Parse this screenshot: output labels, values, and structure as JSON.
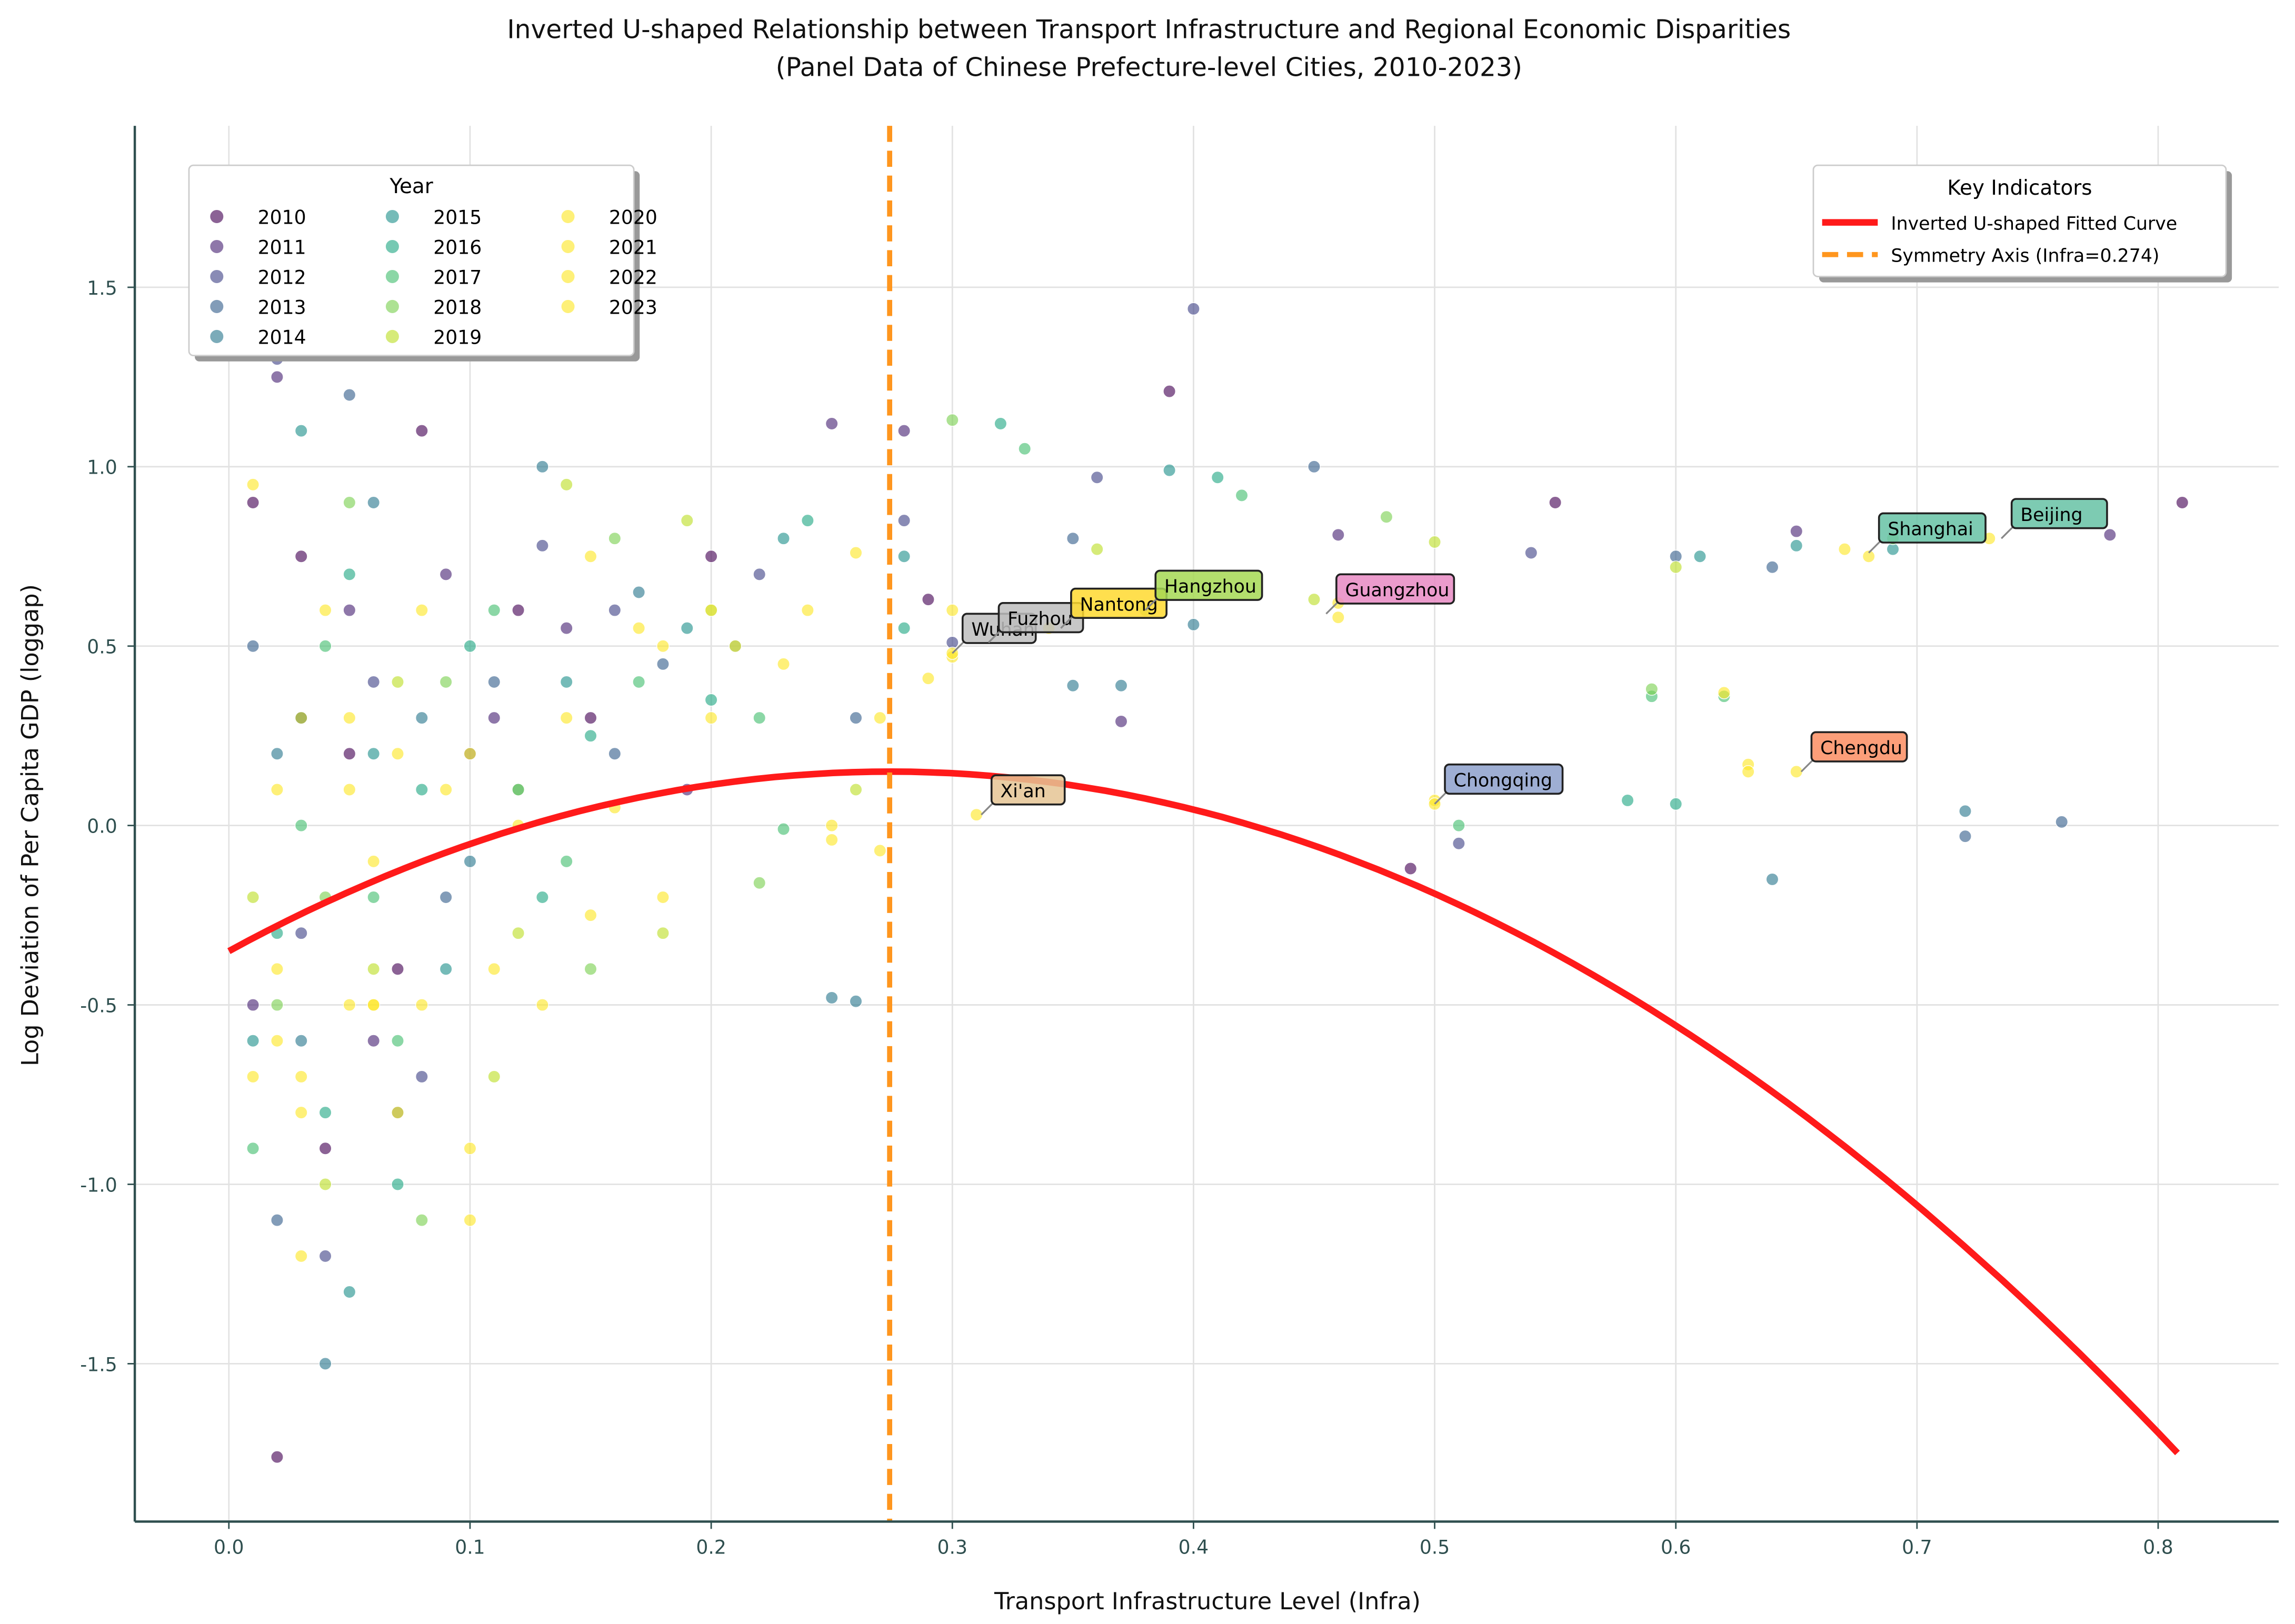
{
  "chart_data": {
    "type": "scatter",
    "title": "Inverted U-shaped Relationship between Transport Infrastructure and Regional Economic Disparities",
    "subtitle": "(Panel Data of Chinese Prefecture-level Cities, 2010-2023)",
    "xlabel": "Transport Infrastructure Level (Infra)",
    "ylabel": "Log Deviation of Per Capita GDP (loggap)",
    "xlim": [
      -0.039,
      0.85
    ],
    "ylim": [
      -1.94,
      1.95
    ],
    "xticks": [
      "0.0",
      "0.1",
      "0.2",
      "0.3",
      "0.4",
      "0.5",
      "0.6",
      "0.7",
      "0.8"
    ],
    "yticks": [
      "-1.5",
      "-1.0",
      "-0.5",
      "0.0",
      "0.5",
      "1.0",
      "1.5"
    ],
    "grid": true,
    "legend_title": "Year",
    "legend_position": "top-left",
    "years": [
      "2010",
      "2011",
      "2012",
      "2013",
      "2014",
      "2015",
      "2016",
      "2017",
      "2018",
      "2019",
      "2020",
      "2021",
      "2022",
      "2023"
    ],
    "year_colors": [
      "#440154",
      "#482475",
      "#414487",
      "#355f8d",
      "#2a788e",
      "#21918c",
      "#22a884",
      "#44bf70",
      "#7ad151",
      "#bddf26",
      "#fde725",
      "#fde725",
      "#fde725",
      "#fde725"
    ],
    "points": {
      "2010": [
        [
          0.01,
          0.9
        ],
        [
          0.02,
          -1.76
        ],
        [
          0.03,
          0.75
        ],
        [
          0.05,
          0.2
        ],
        [
          0.08,
          1.1
        ],
        [
          0.12,
          0.6
        ],
        [
          0.15,
          0.3
        ],
        [
          0.29,
          0.63
        ],
        [
          0.39,
          1.21
        ],
        [
          0.55,
          0.9
        ],
        [
          0.81,
          0.9
        ],
        [
          0.49,
          -0.12
        ],
        [
          0.04,
          -0.9
        ],
        [
          0.07,
          -0.4
        ],
        [
          0.2,
          0.75
        ]
      ],
      "2011": [
        [
          0.02,
          1.25
        ],
        [
          0.03,
          0.3
        ],
        [
          0.06,
          -0.6
        ],
        [
          0.09,
          0.7
        ],
        [
          0.14,
          0.55
        ],
        [
          0.25,
          1.12
        ],
        [
          0.28,
          1.1
        ],
        [
          0.46,
          0.81
        ],
        [
          0.65,
          0.82
        ],
        [
          0.78,
          0.81
        ],
        [
          0.37,
          0.29
        ],
        [
          0.01,
          -0.5
        ],
        [
          0.05,
          0.6
        ],
        [
          0.11,
          0.3
        ],
        [
          0.19,
          0.1
        ]
      ],
      "2012": [
        [
          0.02,
          1.3
        ],
        [
          0.04,
          -1.2
        ],
        [
          0.06,
          0.4
        ],
        [
          0.1,
          0.2
        ],
        [
          0.13,
          0.78
        ],
        [
          0.22,
          0.7
        ],
        [
          0.36,
          0.97
        ],
        [
          0.4,
          1.44
        ],
        [
          0.54,
          0.76
        ],
        [
          0.51,
          -0.05
        ],
        [
          0.28,
          0.85
        ],
        [
          0.03,
          -0.3
        ],
        [
          0.08,
          -0.7
        ],
        [
          0.16,
          0.6
        ],
        [
          0.3,
          0.51
        ]
      ],
      "2013": [
        [
          0.01,
          0.5
        ],
        [
          0.05,
          1.2
        ],
        [
          0.07,
          -0.8
        ],
        [
          0.11,
          0.4
        ],
        [
          0.16,
          0.2
        ],
        [
          0.26,
          0.3
        ],
        [
          0.35,
          0.8
        ],
        [
          0.45,
          1.0
        ],
        [
          0.6,
          0.75
        ],
        [
          0.64,
          0.72
        ],
        [
          0.72,
          -0.03
        ],
        [
          0.76,
          0.01
        ],
        [
          0.02,
          -1.1
        ],
        [
          0.09,
          -0.2
        ],
        [
          0.18,
          0.45
        ]
      ],
      "2014": [
        [
          0.02,
          0.2
        ],
        [
          0.04,
          -1.5
        ],
        [
          0.06,
          0.9
        ],
        [
          0.1,
          -0.1
        ],
        [
          0.13,
          1.0
        ],
        [
          0.25,
          -0.48
        ],
        [
          0.26,
          -0.49
        ],
        [
          0.35,
          0.39
        ],
        [
          0.37,
          0.39
        ],
        [
          0.4,
          0.56
        ],
        [
          0.64,
          -0.15
        ],
        [
          0.72,
          0.04
        ],
        [
          0.03,
          -0.6
        ],
        [
          0.08,
          0.3
        ],
        [
          0.17,
          0.65
        ]
      ],
      "2015": [
        [
          0.01,
          -0.6
        ],
        [
          0.03,
          1.1
        ],
        [
          0.06,
          0.2
        ],
        [
          0.09,
          -0.4
        ],
        [
          0.14,
          0.4
        ],
        [
          0.21,
          0.5
        ],
        [
          0.28,
          0.75
        ],
        [
          0.39,
          0.99
        ],
        [
          0.61,
          0.75
        ],
        [
          0.65,
          0.78
        ],
        [
          0.69,
          0.77
        ],
        [
          0.05,
          -1.3
        ],
        [
          0.12,
          0.1
        ],
        [
          0.19,
          0.55
        ],
        [
          0.23,
          0.8
        ]
      ],
      "2016": [
        [
          0.02,
          -0.3
        ],
        [
          0.05,
          0.7
        ],
        [
          0.07,
          -1.0
        ],
        [
          0.1,
          0.5
        ],
        [
          0.15,
          0.25
        ],
        [
          0.24,
          0.85
        ],
        [
          0.32,
          1.12
        ],
        [
          0.41,
          0.97
        ],
        [
          0.58,
          0.07
        ],
        [
          0.6,
          0.06
        ],
        [
          0.04,
          -0.8
        ],
        [
          0.08,
          0.1
        ],
        [
          0.13,
          -0.2
        ],
        [
          0.2,
          0.35
        ],
        [
          0.28,
          0.55
        ]
      ],
      "2017": [
        [
          0.01,
          -0.9
        ],
        [
          0.04,
          0.5
        ],
        [
          0.06,
          -0.2
        ],
        [
          0.11,
          0.6
        ],
        [
          0.17,
          0.4
        ],
        [
          0.22,
          0.3
        ],
        [
          0.33,
          1.05
        ],
        [
          0.42,
          0.92
        ],
        [
          0.59,
          0.36
        ],
        [
          0.62,
          0.36
        ],
        [
          0.51,
          0.0
        ],
        [
          0.03,
          0.0
        ],
        [
          0.07,
          -0.6
        ],
        [
          0.14,
          -0.1
        ],
        [
          0.23,
          -0.01
        ]
      ],
      "2018": [
        [
          0.02,
          -0.5
        ],
        [
          0.05,
          0.9
        ],
        [
          0.08,
          -1.1
        ],
        [
          0.12,
          0.1
        ],
        [
          0.16,
          0.8
        ],
        [
          0.22,
          -0.16
        ],
        [
          0.3,
          1.13
        ],
        [
          0.48,
          0.86
        ],
        [
          0.59,
          0.38
        ],
        [
          0.69,
          0.8
        ],
        [
          0.04,
          -0.2
        ],
        [
          0.09,
          0.4
        ],
        [
          0.15,
          -0.4
        ],
        [
          0.2,
          0.6
        ],
        [
          0.38,
          0.6
        ]
      ],
      "2019": [
        [
          0.01,
          -0.2
        ],
        [
          0.04,
          -1.0
        ],
        [
          0.07,
          0.4
        ],
        [
          0.11,
          -0.7
        ],
        [
          0.14,
          0.95
        ],
        [
          0.19,
          0.85
        ],
        [
          0.26,
          0.1
        ],
        [
          0.36,
          0.77
        ],
        [
          0.5,
          0.79
        ],
        [
          0.6,
          0.72
        ],
        [
          0.03,
          0.3
        ],
        [
          0.06,
          -0.4
        ],
        [
          0.12,
          -0.3
        ],
        [
          0.18,
          -0.3
        ],
        [
          0.45,
          0.63
        ]
      ],
      "2020": [
        [
          0.02,
          0.1
        ],
        [
          0.05,
          -0.5
        ],
        [
          0.08,
          0.6
        ],
        [
          0.13,
          -0.5
        ],
        [
          0.18,
          -0.2
        ],
        [
          0.23,
          0.45
        ],
        [
          0.27,
          0.3
        ],
        [
          0.46,
          0.62
        ],
        [
          0.62,
          0.37
        ],
        [
          0.67,
          0.77
        ],
        [
          0.03,
          -0.8
        ],
        [
          0.07,
          0.2
        ],
        [
          0.1,
          -0.9
        ],
        [
          0.16,
          0.05
        ],
        [
          0.29,
          0.41
        ]
      ],
      "2021": [
        [
          0.01,
          -0.7
        ],
        [
          0.04,
          0.6
        ],
        [
          0.06,
          -0.1
        ],
        [
          0.1,
          0.2
        ],
        [
          0.15,
          -0.25
        ],
        [
          0.2,
          0.3
        ],
        [
          0.25,
          0.0
        ],
        [
          0.3,
          0.6
        ],
        [
          0.5,
          0.07
        ],
        [
          0.63,
          0.17
        ],
        [
          0.02,
          -0.4
        ],
        [
          0.08,
          -0.5
        ],
        [
          0.12,
          0.0
        ],
        [
          0.18,
          0.5
        ],
        [
          0.24,
          0.6
        ]
      ],
      "2022": [
        [
          0.02,
          -0.6
        ],
        [
          0.05,
          0.3
        ],
        [
          0.07,
          -0.8
        ],
        [
          0.11,
          -0.4
        ],
        [
          0.17,
          0.55
        ],
        [
          0.21,
          0.5
        ],
        [
          0.25,
          -0.04
        ],
        [
          0.3,
          0.47
        ],
        [
          0.46,
          0.58
        ],
        [
          0.63,
          0.15
        ],
        [
          0.03,
          -1.2
        ],
        [
          0.06,
          -0.5
        ],
        [
          0.09,
          0.1
        ],
        [
          0.14,
          0.3
        ],
        [
          0.68,
          0.75
        ]
      ],
      "2023": [
        [
          0.01,
          0.95
        ],
        [
          0.03,
          -0.7
        ],
        [
          0.05,
          0.1
        ],
        [
          0.06,
          -0.5
        ],
        [
          0.1,
          -1.1
        ],
        [
          0.15,
          0.75
        ],
        [
          0.2,
          0.6
        ],
        [
          0.26,
          0.76
        ],
        [
          0.3,
          0.48
        ],
        [
          0.31,
          0.03
        ],
        [
          0.34,
          0.55
        ],
        [
          0.5,
          0.06
        ],
        [
          0.65,
          0.15
        ],
        [
          0.73,
          0.8
        ],
        [
          0.27,
          -0.07
        ]
      ]
    },
    "annotations": [
      {
        "label": "Wuhan",
        "x": 0.3,
        "y": 0.48,
        "color": "#bdbdbd"
      },
      {
        "label": "Fuzhou",
        "x": 0.315,
        "y": 0.51,
        "color": "#bdbdbd"
      },
      {
        "label": "Nantong",
        "x": 0.345,
        "y": 0.55,
        "color": "#ffd92f"
      },
      {
        "label": "Hangzhou",
        "x": 0.38,
        "y": 0.6,
        "color": "#a6d854"
      },
      {
        "label": "Guangzhou",
        "x": 0.455,
        "y": 0.59,
        "color": "#e78ac3"
      },
      {
        "label": "Xi'an",
        "x": 0.312,
        "y": 0.03,
        "color": "#e5c494"
      },
      {
        "label": "Chongqing",
        "x": 0.5,
        "y": 0.06,
        "color": "#8da0cb"
      },
      {
        "label": "Chengdu",
        "x": 0.652,
        "y": 0.15,
        "color": "#fc8d62"
      },
      {
        "label": "Shanghai",
        "x": 0.68,
        "y": 0.76,
        "color": "#66c2a5"
      },
      {
        "label": "Beijing",
        "x": 0.735,
        "y": 0.8,
        "color": "#66c2a5"
      }
    ],
    "fitted_curve": {
      "label": "Inverted U-shaped Fitted Curve",
      "coefficients": [
        -0.35,
        3.65,
        -6.66
      ],
      "x_range": [
        0,
        0.808
      ],
      "color": "#ff1a1a"
    },
    "symmetry_axis": {
      "label": "Symmetry Axis (Infra=0.274)",
      "x": 0.274,
      "color": "#ff961e"
    },
    "key_legend_title": "Key Indicators",
    "key_legend_position": "top-right"
  }
}
